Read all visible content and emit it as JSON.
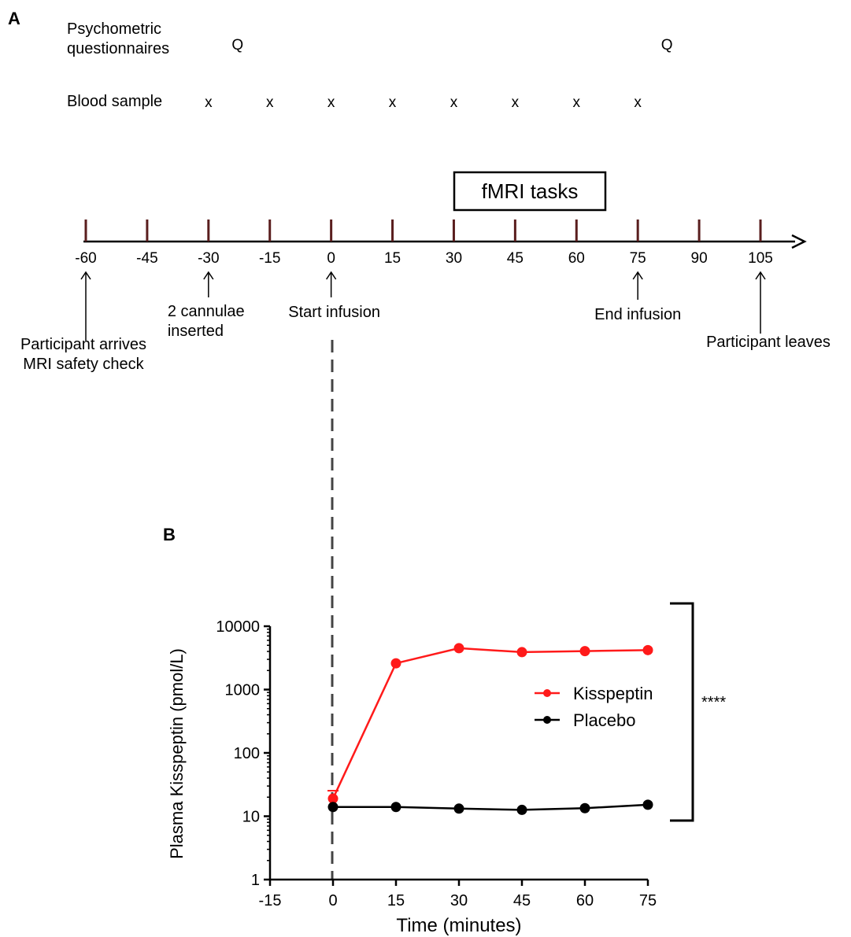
{
  "panel_a": {
    "label": "A",
    "rows": {
      "questionnaires_label": [
        "Psychometric",
        "questionnaires"
      ],
      "blood_label": "Blood sample",
      "questionnaire_marker": "Q",
      "questionnaire_times": [
        -30,
        75
      ],
      "blood_marker": "x",
      "blood_times": [
        -30,
        -15,
        0,
        15,
        30,
        45,
        60,
        75
      ]
    },
    "fmri_box_label": "fMRI tasks",
    "timeline_ticks": [
      -60,
      -45,
      -30,
      -15,
      0,
      15,
      30,
      45,
      60,
      75,
      90,
      105
    ],
    "events": [
      {
        "time": -60,
        "lines": [
          "Participant arrives",
          "MRI safety check"
        ]
      },
      {
        "time": -30,
        "lines": [
          "2 cannulae",
          "inserted"
        ]
      },
      {
        "time": 0,
        "lines": [
          "Start infusion"
        ]
      },
      {
        "time": 75,
        "lines": [
          "End infusion"
        ]
      },
      {
        "time": 105,
        "lines": [
          "Participant leaves"
        ]
      }
    ],
    "colors": {
      "tick": "#5a1e1e",
      "axis": "#000000"
    }
  },
  "chart_data": {
    "type": "line",
    "panel_label": "B",
    "xlabel": "Time (minutes)",
    "ylabel": "Plasma Kisspeptin (pmol/L)",
    "yscale": "log",
    "xlim": [
      -15,
      75
    ],
    "ylim": [
      1,
      10000
    ],
    "x_ticks": [
      -15,
      0,
      15,
      30,
      45,
      60,
      75
    ],
    "y_ticks": [
      1,
      10,
      100,
      1000,
      10000
    ],
    "grid": false,
    "legend_position": "right",
    "significance_label": "****",
    "infusion_start_line_x": 0,
    "series": [
      {
        "name": "Kisspeptin",
        "color": "#ff1a1a",
        "x": [
          0,
          15,
          30,
          45,
          60,
          75
        ],
        "y": [
          19,
          2600,
          4500,
          3900,
          4050,
          4200
        ]
      },
      {
        "name": "Placebo",
        "color": "#000000",
        "x": [
          0,
          15,
          30,
          45,
          60,
          75
        ],
        "y": [
          14,
          14,
          13.2,
          12.6,
          13.4,
          15.2
        ]
      }
    ]
  }
}
